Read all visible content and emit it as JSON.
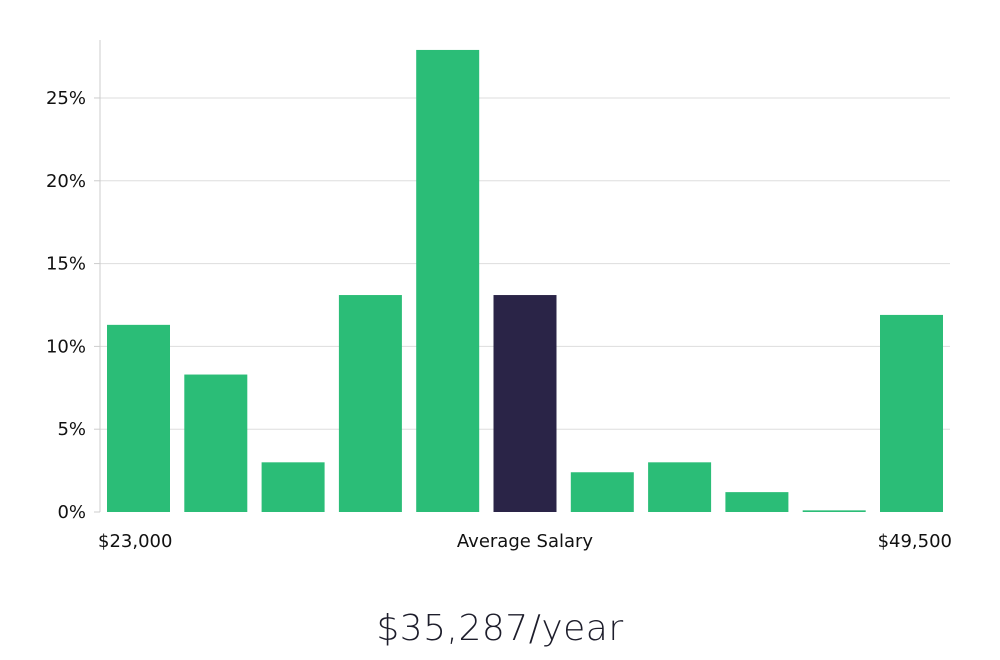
{
  "chart_data": {
    "type": "bar",
    "title": "",
    "xlabel": "Average Salary",
    "ylabel": "",
    "x_min_label": "$23,000",
    "x_max_label": "$49,500",
    "ylim": [
      0,
      28.5
    ],
    "y_ticks": [
      0,
      5,
      10,
      15,
      20,
      25
    ],
    "y_tick_labels": [
      "0%",
      "5%",
      "10%",
      "15%",
      "20%",
      "25%"
    ],
    "values": [
      11.3,
      8.3,
      3.0,
      13.1,
      27.9,
      13.1,
      2.4,
      3.0,
      1.2,
      0.1,
      11.9
    ],
    "highlight_index": 5,
    "colors": {
      "bar": "#2bbd77",
      "highlight": "#2a2447",
      "grid": "#dddddd",
      "axis": "#cccccc"
    }
  },
  "summary": {
    "salary_text": "$35,287/year"
  }
}
